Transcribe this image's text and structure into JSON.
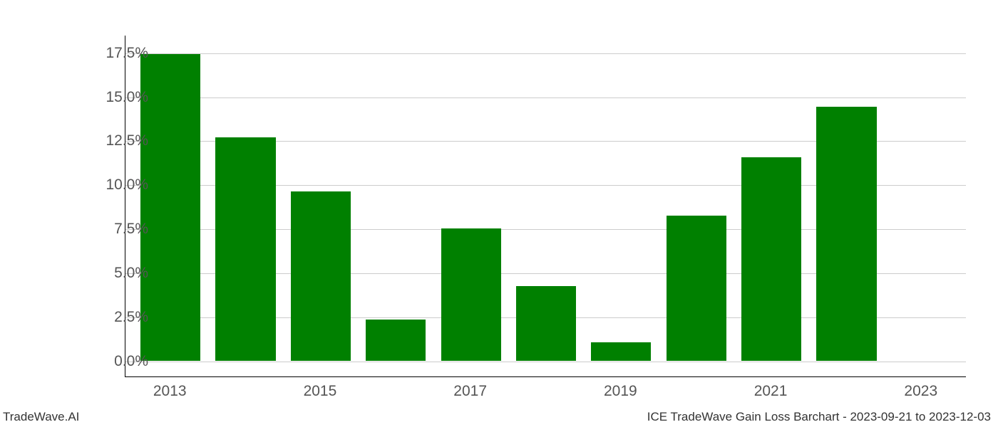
{
  "chart": {
    "type": "bar",
    "years": [
      2013,
      2014,
      2015,
      2016,
      2017,
      2018,
      2019,
      2020,
      2021,
      2022,
      2023
    ],
    "values": [
      17.4,
      12.7,
      9.6,
      2.35,
      7.5,
      4.25,
      1.05,
      8.25,
      11.55,
      14.4,
      0.0
    ],
    "bar_color": "#008000",
    "background_color": "#ffffff",
    "grid_color": "#cccccc",
    "axis_color": "#000000",
    "tick_label_color": "#555555",
    "ylim_min": -0.9,
    "ylim_max": 18.5,
    "yticks": [
      0.0,
      2.5,
      5.0,
      7.5,
      10.0,
      12.5,
      15.0,
      17.5
    ],
    "ytick_labels": [
      "0.0%",
      "2.5%",
      "5.0%",
      "7.5%",
      "10.0%",
      "12.5%",
      "15.0%",
      "17.5%"
    ],
    "xticks": [
      2013,
      2015,
      2017,
      2019,
      2021,
      2023
    ],
    "xtick_labels": [
      "2013",
      "2015",
      "2017",
      "2019",
      "2021",
      "2023"
    ],
    "xlim_min": 2012.4,
    "xlim_max": 2023.6,
    "bar_width": 0.8,
    "tick_fontsize": 21
  },
  "footer": {
    "left": "TradeWave.AI",
    "right": "ICE TradeWave Gain Loss Barchart - 2023-09-21 to 2023-12-03"
  }
}
